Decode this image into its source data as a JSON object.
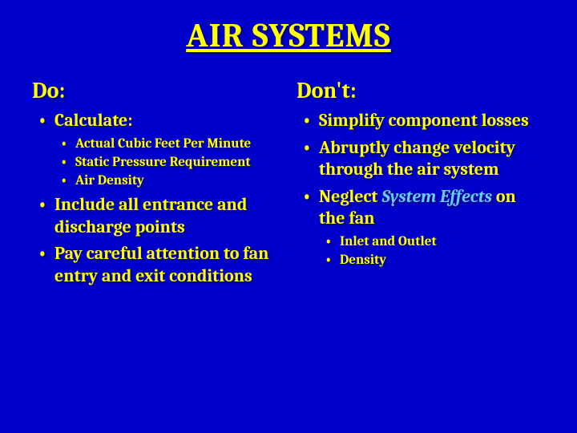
{
  "background_color": "#0000cc",
  "text_color": "#ffff00",
  "highlight_color": "#66ccff",
  "title": {
    "text": "AIR SYSTEMS",
    "fontsize": 42,
    "underline": true
  },
  "left": {
    "header": "Do:",
    "items": [
      {
        "text": "Calculate:",
        "sub": [
          "Actual Cubic Feet Per Minute",
          "Static Pressure Requirement",
          "Air Density"
        ]
      },
      {
        "text": "Include all entrance and discharge points"
      },
      {
        "text": "Pay careful attention to fan entry and exit conditions"
      }
    ]
  },
  "right": {
    "header": "Don't:",
    "items": [
      {
        "text": "Simplify component losses"
      },
      {
        "text": "Abruptly change velocity through the air system"
      },
      {
        "prefix": "Neglect ",
        "highlight": "System Effects",
        "suffix": " on the fan",
        "sub": [
          "Inlet and Outlet",
          "Density"
        ]
      }
    ]
  }
}
